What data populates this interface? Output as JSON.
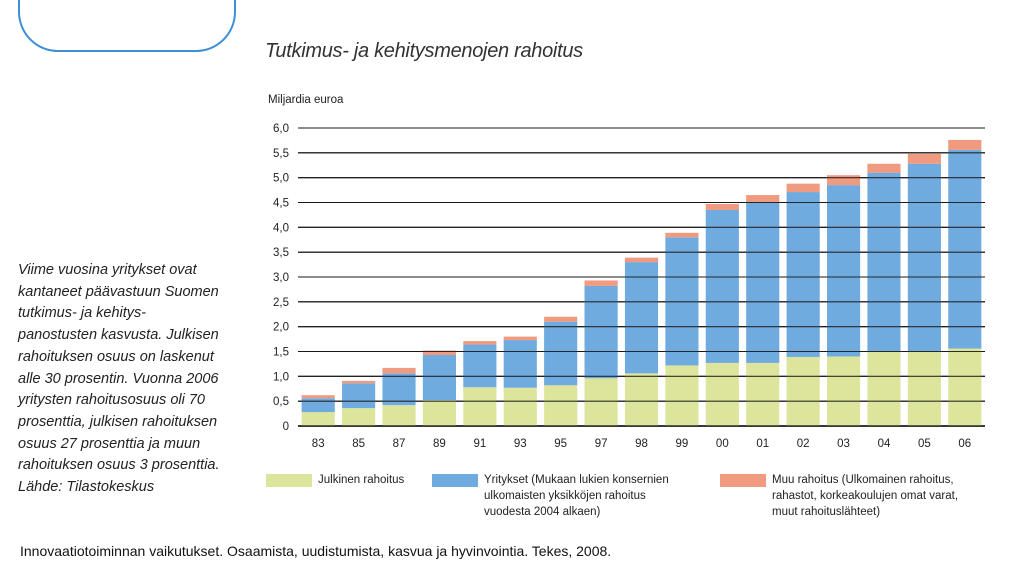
{
  "chart_data": {
    "type": "bar",
    "stacked": true,
    "title": "Tutkimus- ja kehitysmenojen rahoitus",
    "ylabel": "Miljardia euroa",
    "ylim": [
      0,
      6.0
    ],
    "yticks": [
      "0",
      "0,5",
      "1,0",
      "1,5",
      "2,0",
      "2,5",
      "3,0",
      "3,5",
      "4,0",
      "4,5",
      "5,0",
      "5,5",
      "6,0"
    ],
    "categories": [
      "83",
      "85",
      "87",
      "89",
      "91",
      "93",
      "95",
      "97",
      "98",
      "99",
      "00",
      "01",
      "02",
      "03",
      "04",
      "05",
      "06"
    ],
    "series": [
      {
        "name": "Julkinen rahoitus",
        "color": "#dde59c",
        "values": [
          0.28,
          0.36,
          0.42,
          0.52,
          0.78,
          0.77,
          0.82,
          0.96,
          1.06,
          1.22,
          1.27,
          1.27,
          1.39,
          1.4,
          1.5,
          1.5,
          1.56
        ]
      },
      {
        "name": "Yritykset (Mukaan lukien konsernien ulkomaisten yksikköjen rahoitus vuodesta 2004 alkaen)",
        "color": "#6fabde",
        "values": [
          0.28,
          0.5,
          0.64,
          0.91,
          0.86,
          0.96,
          1.28,
          1.86,
          2.24,
          2.58,
          3.08,
          3.23,
          3.32,
          3.45,
          3.6,
          3.78,
          4.0
        ]
      },
      {
        "name": "Muu rahoitus (Ulkomainen rahoitus, rahastot, korkeakoulujen omat varat, muut rahoituslähteet)",
        "color": "#f09a80",
        "values": [
          0.06,
          0.05,
          0.11,
          0.09,
          0.07,
          0.07,
          0.1,
          0.11,
          0.09,
          0.09,
          0.12,
          0.15,
          0.17,
          0.2,
          0.18,
          0.2,
          0.2
        ]
      }
    ]
  },
  "legend": [
    {
      "lines": [
        "Julkinen rahoitus"
      ],
      "color": "#dde59c"
    },
    {
      "lines": [
        "Yritykset (Mukaan lukien konsernien",
        "ulkomaisten yksikköjen rahoitus",
        "vuodesta 2004 alkaen)"
      ],
      "color": "#6fabde"
    },
    {
      "lines": [
        "Muu rahoitus (Ulkomainen rahoitus,",
        "rahastot, korkeakoulujen omat varat,",
        "muut rahoituslähteet)"
      ],
      "color": "#f09a80"
    }
  ],
  "side_text": [
    "Viime vuosina yritykset ovat",
    "kantaneet päävastuun Suomen",
    "tutkimus- ja kehitys-",
    "panostusten kasvusta. Julkisen",
    "rahoituksen osuus on laskenut",
    "alle 30 prosentin. Vuonna 2006",
    "yritysten rahoitusosuus oli 70",
    "prosenttia, julkisen rahoituksen",
    "osuus 27 prosenttia ja muun",
    "rahoituksen osuus 3 prosenttia.",
    "Lähde: Tilastokeskus"
  ],
  "caption": "Innovaatiotoiminnan vaikutukset. Osaamista, uudistumista, kasvua ja hyvinvointia. Tekes, 2008."
}
